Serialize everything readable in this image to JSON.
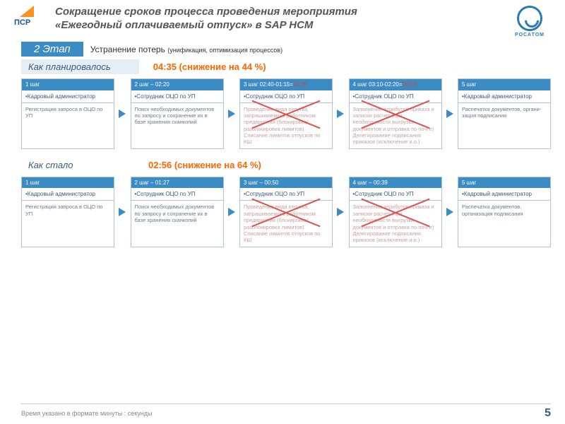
{
  "header": {
    "logo_left_text": "ПСР",
    "title_line1": "Сокращение сроков процесса проведения мероприятия",
    "title_line2": "«Ежегодный оплачиваемый отпуск» в SAP HCM",
    "logo_right_text": "РОСАТОМ"
  },
  "stage": {
    "badge": "2 Этап",
    "subtitle": "Устранение потерь",
    "subtitle_note": "(унификация, оптимизация процессов)"
  },
  "colors": {
    "accent": "#3b8bc4",
    "orange": "#ff6600",
    "red": "#d9534f",
    "panel": "#e6eef5"
  },
  "planned": {
    "label": "Как планировалось",
    "metric": "04:35 (снижение на 44 %)",
    "steps": [
      {
        "hdr": "1 шаг",
        "role": "•Кадровый администратор",
        "body": "Регистрация запроса в ОЦО по УП",
        "crossed": false
      },
      {
        "hdr": "2 шаг – 02:20",
        "role": "•Сотрудник ОЦО по УП",
        "body": "Поиск необходимых документов по запросу и сохранение их в базе хранения сканкопий",
        "crossed": false
      },
      {
        "hdr": "3 шаг 02:40-01:15=",
        "hdr_strike": "01:25",
        "role": "•Сотрудник ОЦО по УП",
        "body": "Проведение вида отпуска, запрашиваемого работником предприятия (блокировка/разблокировка лимитов)\n\nСписание лимитов отпусков по КШ",
        "crossed": true
      },
      {
        "hdr": "4 шаг 03:10-02:20=",
        "hdr_strike": "00:50",
        "role": "•Сотрудник ОЦО по УП",
        "body": "Заполнение атрибутов приказа и записки-расчет (при необходимости выгрузка документов и отправка по почте)\nДелегирование подписания приказов (исключение и.о.)",
        "crossed": true
      },
      {
        "hdr": "5 шаг",
        "role": "•Кадровый администратор",
        "body": "Распечатка документов, органи-зация подписания",
        "crossed": false
      }
    ]
  },
  "actual": {
    "label": "Как стало",
    "metric": "02:56 (снижение на 64 %)",
    "steps": [
      {
        "hdr": "1 шаг",
        "role": "•Кадровый администратор",
        "body": "Регистрация запроса в ОЦО по УП",
        "crossed": false
      },
      {
        "hdr": "2 шаг – 01:27",
        "role": "•Сотрудник ОЦО по УП",
        "body": "Поиск необходимых документов по запросу и сохранение их в базе хранения сканкопий",
        "crossed": false
      },
      {
        "hdr": "3 шаг – 00:50",
        "role": "•Сотрудник ОЦО по УП",
        "body": "Проведение вида отпуска, запрашиваемого работником предприятия (блокировка/разблокировка лимитов)\nСписание лимитов отпусков по КШ",
        "crossed": true
      },
      {
        "hdr": "4 шаг – 00:39",
        "role": "•Сотрудник ОЦО по УП",
        "body": "Заполнение атрибутов приказа и записки-расчет (при необходимости выгрузка документов и отправка по почте)\nДелегирование подписания приказов (исключение и.о.)",
        "crossed": true
      },
      {
        "hdr": "5 шаг",
        "role": "•Кадровый администратор",
        "body": "Распечатка документов, организация подписания",
        "crossed": false
      }
    ]
  },
  "footer": {
    "note": "Время указано в формате минуты : секунды",
    "page": "5"
  }
}
